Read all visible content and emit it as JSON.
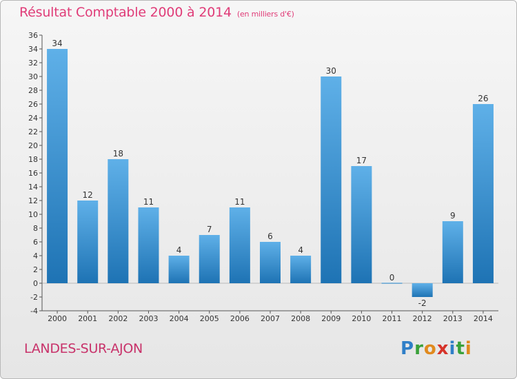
{
  "title": "Résultat Comptable 2000 à 2014",
  "unit_note": "(en milliers d'€)",
  "place": "LANDES-SUR-AJON",
  "brand": {
    "letters": [
      "P",
      "r",
      "o",
      "x",
      "i",
      "t",
      "i"
    ],
    "colors": [
      "#2f7fc8",
      "#3aa13a",
      "#e08a1e",
      "#d6332a",
      "#2f7fc8",
      "#3aa13a",
      "#e08a1e"
    ]
  },
  "colors": {
    "bar_top": "#5fb0e8",
    "bar_bottom": "#1e73b4",
    "title": "#e03c78"
  },
  "chart_data": {
    "type": "bar",
    "title": "Résultat Comptable 2000 à 2014",
    "subtitle": "(en milliers d'€)",
    "xlabel": "",
    "ylabel": "",
    "categories": [
      "2000",
      "2001",
      "2002",
      "2003",
      "2004",
      "2005",
      "2006",
      "2007",
      "2008",
      "2009",
      "2010",
      "2011",
      "2012",
      "2013",
      "2014"
    ],
    "values": [
      34,
      12,
      18,
      11,
      4,
      7,
      11,
      6,
      4,
      30,
      17,
      0,
      -2,
      9,
      26
    ],
    "ylim": [
      -4,
      36
    ],
    "yticks": [
      -4,
      -2,
      0,
      2,
      4,
      6,
      8,
      10,
      12,
      14,
      16,
      18,
      20,
      22,
      24,
      26,
      28,
      30,
      32,
      34,
      36
    ],
    "grid": false,
    "legend": "none"
  }
}
